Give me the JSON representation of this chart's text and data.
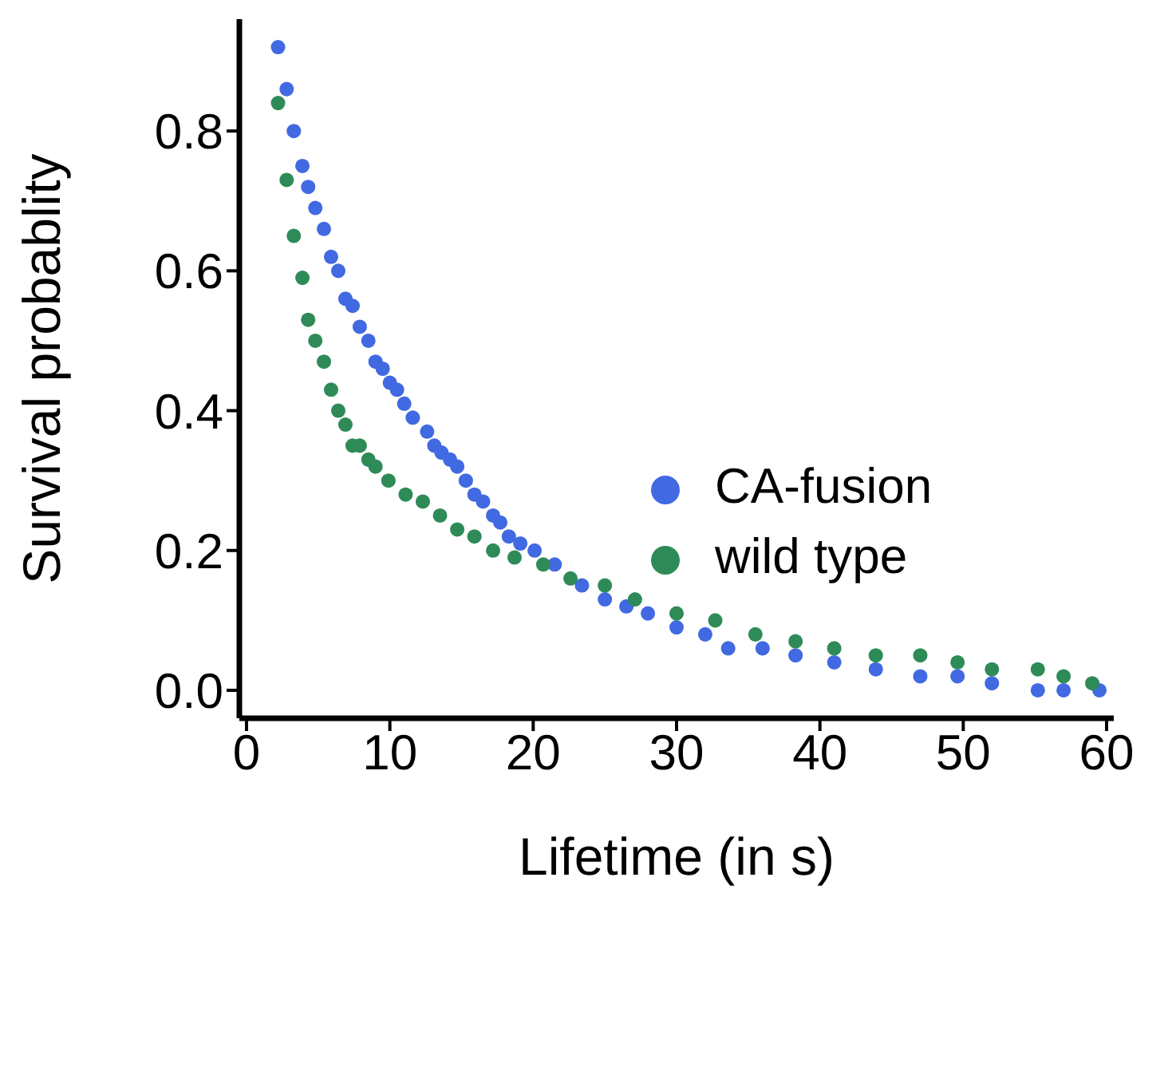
{
  "chart_data": {
    "type": "scatter",
    "xlabel": "Lifetime (in s)",
    "ylabel": "Survival probablity",
    "xlim": [
      -0.5,
      60.5
    ],
    "ylim": [
      -0.04,
      0.96
    ],
    "xticks": [
      0,
      10,
      20,
      30,
      40,
      50,
      60
    ],
    "yticks": [
      {
        "value": 0,
        "label": "0.0"
      },
      {
        "value": 0.2,
        "label": "0.2"
      },
      {
        "value": 0.4,
        "label": "0.4"
      },
      {
        "value": 0.6,
        "label": "0.6"
      },
      {
        "value": 0.8,
        "label": "0.8"
      }
    ],
    "grid": false,
    "legend": "right",
    "marker": "circle",
    "series": [
      {
        "name": "CA-fusion",
        "color": "#4169e1",
        "x": [
          2.2,
          2.8,
          3.3,
          3.9,
          4.3,
          4.8,
          5.4,
          5.9,
          6.4,
          6.9,
          7.4,
          7.9,
          8.5,
          9.0,
          9.5,
          10,
          10.5,
          11,
          11.6,
          12.6,
          13.1,
          13.6,
          14.2,
          14.7,
          15.3,
          15.9,
          16.5,
          17.2,
          17.7,
          18.3,
          19.1,
          20.1,
          21.5,
          23.4,
          25,
          26.5,
          28,
          30,
          32,
          33.6,
          36,
          38.3,
          41,
          43.9,
          47,
          49.6,
          52,
          55.2,
          57,
          59.5
        ],
        "values": [
          0.92,
          0.86,
          0.8,
          0.75,
          0.72,
          0.69,
          0.66,
          0.62,
          0.6,
          0.56,
          0.55,
          0.52,
          0.5,
          0.47,
          0.46,
          0.44,
          0.43,
          0.41,
          0.39,
          0.37,
          0.35,
          0.34,
          0.33,
          0.32,
          0.3,
          0.28,
          0.27,
          0.25,
          0.24,
          0.22,
          0.21,
          0.2,
          0.18,
          0.15,
          0.13,
          0.12,
          0.11,
          0.09,
          0.08,
          0.06,
          0.06,
          0.05,
          0.04,
          0.03,
          0.02,
          0.02,
          0.01,
          0.0,
          0.0,
          0.0
        ]
      },
      {
        "name": "wild type",
        "color": "#2e8b57",
        "x": [
          2.2,
          2.8,
          3.3,
          3.9,
          4.3,
          4.8,
          5.4,
          5.9,
          6.4,
          6.9,
          7.4,
          7.9,
          8.5,
          9.0,
          9.9,
          11.1,
          12.3,
          13.5,
          14.7,
          15.9,
          17.2,
          18.7,
          20.7,
          22.6,
          25,
          27.1,
          30,
          32.7,
          35.5,
          38.3,
          41,
          43.9,
          47,
          49.6,
          52,
          55.2,
          57,
          59
        ],
        "values": [
          0.84,
          0.73,
          0.65,
          0.59,
          0.53,
          0.5,
          0.47,
          0.43,
          0.4,
          0.38,
          0.35,
          0.35,
          0.33,
          0.32,
          0.3,
          0.28,
          0.27,
          0.25,
          0.23,
          0.22,
          0.2,
          0.19,
          0.18,
          0.16,
          0.15,
          0.13,
          0.11,
          0.1,
          0.08,
          0.07,
          0.06,
          0.05,
          0.05,
          0.04,
          0.03,
          0.03,
          0.02,
          0.01
        ]
      }
    ]
  }
}
